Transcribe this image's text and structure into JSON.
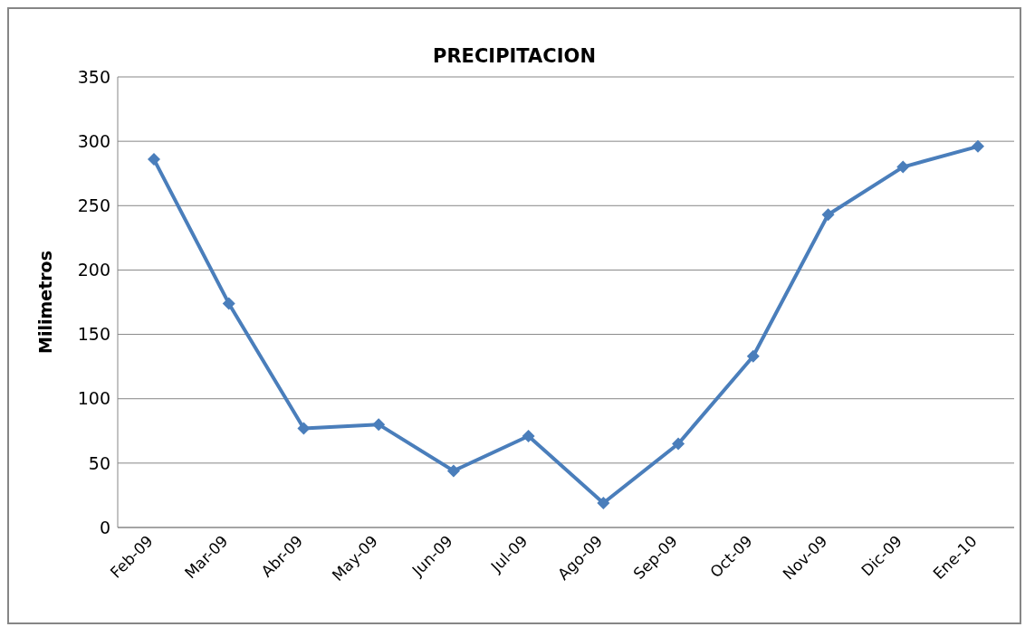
{
  "chart_data": {
    "type": "line",
    "title": "PRECIPITACION",
    "ylabel": "Milimetros",
    "categories": [
      "Feb-09",
      "Mar-09",
      "Abr-09",
      "May-09",
      "Jun-09",
      "Jul-09",
      "Ago-09",
      "Sep-09",
      "Oct-09",
      "Nov-09",
      "Dic-09",
      "Ene-10"
    ],
    "series": [
      {
        "color": "#4a7ebb",
        "values": [
          286,
          174,
          77,
          80,
          44,
          71,
          19,
          65,
          133,
          243,
          280,
          296
        ]
      }
    ],
    "ylim": [
      0,
      350
    ],
    "yticks": [
      0,
      50,
      100,
      150,
      200,
      250,
      300,
      350
    ],
    "grid": "y",
    "legend": false,
    "marker": "diamond",
    "line_style": "solid"
  }
}
